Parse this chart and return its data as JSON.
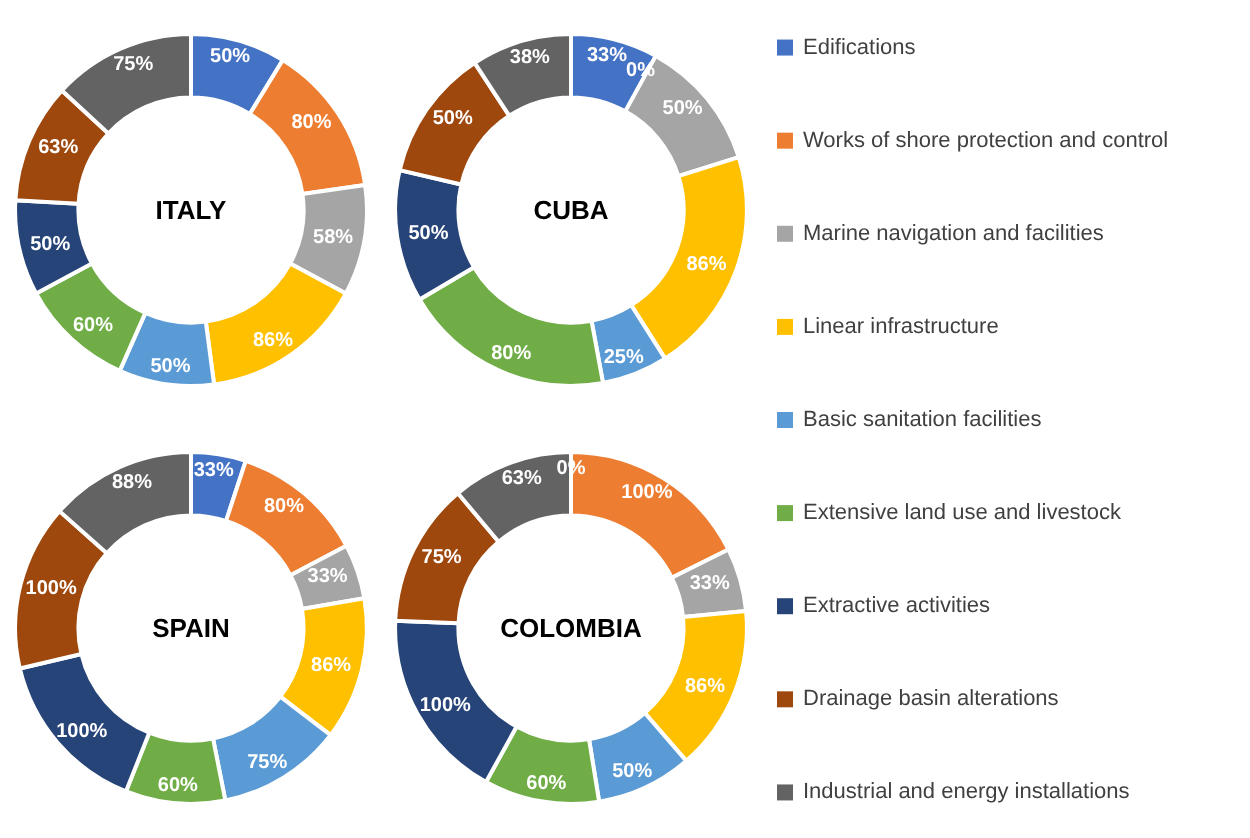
{
  "chart_data": [
    {
      "type": "donut",
      "title": "ITALY",
      "legend": "right",
      "categories": [
        "Edifications",
        "Works of shore protection and control",
        "Marine navigation and facilities",
        "Linear infrastructure",
        "Basic sanitation facilities",
        "Extensive land use and livestock",
        "Extractive activities",
        "Drainage basin alterations",
        "Industrial and energy installations"
      ],
      "values": [
        50,
        80,
        58,
        86,
        50,
        60,
        50,
        63,
        75
      ],
      "value_labels": [
        "50%",
        "80%",
        "58%",
        "86%",
        "50%",
        "60%",
        "50%",
        "63%",
        "75%"
      ],
      "colors": [
        "#4472c4",
        "#ed7d31",
        "#a5a5a5",
        "#ffc000",
        "#5b9bd5",
        "#70ad47",
        "#264478",
        "#9e480e",
        "#636363"
      ]
    },
    {
      "type": "donut",
      "title": "CUBA",
      "values": [
        33,
        0,
        50,
        86,
        25,
        80,
        50,
        50,
        38
      ],
      "value_labels": [
        "33%",
        "0%",
        "50%",
        "86%",
        "25%",
        "80%",
        "50%",
        "50%",
        "38%"
      ],
      "colors": [
        "#4472c4",
        "#ed7d31",
        "#a5a5a5",
        "#ffc000",
        "#5b9bd5",
        "#70ad47",
        "#264478",
        "#9e480e",
        "#636363"
      ]
    },
    {
      "type": "donut",
      "title": "SPAIN",
      "values": [
        33,
        80,
        33,
        86,
        75,
        60,
        100,
        100,
        88
      ],
      "value_labels": [
        "33%",
        "80%",
        "33%",
        "86%",
        "75%",
        "60%",
        "100%",
        "100%",
        "88%"
      ],
      "colors": [
        "#4472c4",
        "#ed7d31",
        "#a5a5a5",
        "#ffc000",
        "#5b9bd5",
        "#70ad47",
        "#264478",
        "#9e480e",
        "#636363"
      ]
    },
    {
      "type": "donut",
      "title": "COLOMBIA",
      "values": [
        0,
        100,
        33,
        86,
        50,
        60,
        100,
        75,
        63
      ],
      "value_labels": [
        "0%",
        "100%",
        "33%",
        "86%",
        "50%",
        "60%",
        "100%",
        "75%",
        "63%"
      ],
      "colors": [
        "#4472c4",
        "#ed7d31",
        "#a5a5a5",
        "#ffc000",
        "#5b9bd5",
        "#70ad47",
        "#264478",
        "#9e480e",
        "#636363"
      ]
    }
  ]
}
